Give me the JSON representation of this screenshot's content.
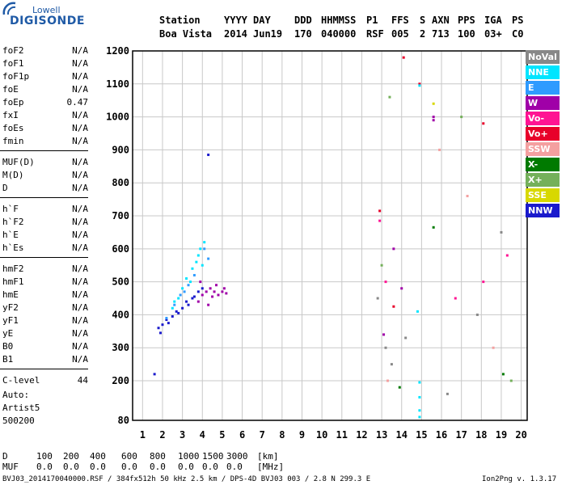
{
  "logo": {
    "line1": "Lowell",
    "line2": "DIGISONDE"
  },
  "header": {
    "labels": [
      "Station",
      "YYYY",
      "DAY",
      "DDD",
      "HHMMSS",
      "P1",
      "FFS",
      "S",
      "AXN",
      "PPS",
      "IGA",
      "PS"
    ],
    "values": [
      "Boa Vista",
      "2014",
      "Jun19",
      "170",
      "040000",
      "RSF",
      "005",
      "2",
      "713",
      "100",
      "03+",
      "C0"
    ]
  },
  "params": {
    "group1": [
      [
        "foF2",
        "N/A"
      ],
      [
        "foF1",
        "N/A"
      ],
      [
        "foF1p",
        "N/A"
      ],
      [
        "foE",
        "N/A"
      ],
      [
        "foEp",
        "0.47"
      ],
      [
        "fxI",
        "N/A"
      ],
      [
        "foEs",
        "N/A"
      ],
      [
        "fmin",
        "N/A"
      ]
    ],
    "group2": [
      [
        "MUF(D)",
        "N/A"
      ],
      [
        "M(D)",
        "N/A"
      ],
      [
        "D",
        "N/A"
      ]
    ],
    "group3": [
      [
        "h`F",
        "N/A"
      ],
      [
        "h`F2",
        "N/A"
      ],
      [
        "h`E",
        "N/A"
      ],
      [
        "h`Es",
        "N/A"
      ]
    ],
    "group4": [
      [
        "hmF2",
        "N/A"
      ],
      [
        "hmF1",
        "N/A"
      ],
      [
        "hmE",
        "N/A"
      ],
      [
        "yF2",
        "N/A"
      ],
      [
        "yF1",
        "N/A"
      ],
      [
        "yE",
        "N/A"
      ],
      [
        "B0",
        "N/A"
      ],
      [
        "B1",
        "N/A"
      ]
    ],
    "group5": [
      [
        "C-level",
        "44"
      ]
    ]
  },
  "auto": {
    "label": "Auto:",
    "artist": "Artist5",
    "version": "500200"
  },
  "muf_table": {
    "d_label": "D",
    "d_values": [
      "100",
      "200",
      "400",
      "600",
      "800",
      "1000",
      "1500",
      "3000"
    ],
    "d_unit": "[km]",
    "muf_label": "MUF",
    "muf_values": [
      "0.0",
      "0.0",
      "0.0",
      "0.0",
      "0.0",
      "0.0",
      "0.0",
      "0.0"
    ],
    "muf_unit": "[MHz]"
  },
  "footer": {
    "left": "BVJ03_2014170040000.RSF / 384fx512h 50 kHz 2.5 km / DPS-4D BVJ03 003 / 2.8 N 299.3 E",
    "right": "Ion2Png v. 1.3.17"
  },
  "legend": [
    {
      "label": "NoVal",
      "color": "#888888"
    },
    {
      "label": "NNE",
      "color": "#00e5ff"
    },
    {
      "label": "E",
      "color": "#2f9bff"
    },
    {
      "label": "W",
      "color": "#a000a8"
    },
    {
      "label": "Vo-",
      "color": "#ff1493"
    },
    {
      "label": "Vo+",
      "color": "#e8002a"
    },
    {
      "label": "SSW",
      "color": "#f4a0a0"
    },
    {
      "label": "X-",
      "color": "#007a00"
    },
    {
      "label": "X+",
      "color": "#74b05a"
    },
    {
      "label": "SSE",
      "color": "#d8d800"
    },
    {
      "label": "NNW",
      "color": "#1a1acc"
    }
  ],
  "chart_data": {
    "type": "scatter",
    "xlim": [
      0.5,
      20.3
    ],
    "ylim": [
      80,
      1200
    ],
    "x_ticks": [
      1,
      2,
      3,
      4,
      5,
      6,
      7,
      8,
      9,
      10,
      11,
      12,
      13,
      14,
      15,
      16,
      17,
      18,
      19,
      20
    ],
    "y_ticks": [
      80,
      200,
      300,
      400,
      500,
      600,
      700,
      800,
      900,
      1000,
      1100,
      1200
    ],
    "grid": true,
    "legend_placement": "right",
    "series": [
      {
        "color": "#1a1acc",
        "points": [
          [
            1.8,
            360
          ],
          [
            2.0,
            370
          ],
          [
            2.2,
            385
          ],
          [
            2.5,
            395
          ],
          [
            2.7,
            410
          ],
          [
            3.0,
            420
          ],
          [
            3.2,
            440
          ],
          [
            3.5,
            450
          ],
          [
            3.8,
            470
          ],
          [
            4.0,
            480
          ],
          [
            1.9,
            345
          ],
          [
            2.3,
            375
          ],
          [
            2.8,
            405
          ],
          [
            3.3,
            430
          ],
          [
            3.6,
            455
          ]
        ]
      },
      {
        "color": "#a000a8",
        "points": [
          [
            3.8,
            440
          ],
          [
            4.0,
            460
          ],
          [
            4.2,
            470
          ],
          [
            4.4,
            480
          ],
          [
            4.6,
            470
          ],
          [
            4.8,
            460
          ],
          [
            5.0,
            470
          ],
          [
            5.2,
            465
          ],
          [
            4.3,
            430
          ],
          [
            4.7,
            490
          ],
          [
            3.9,
            500
          ],
          [
            4.5,
            455
          ],
          [
            5.1,
            480
          ]
        ]
      },
      {
        "color": "#00e5ff",
        "points": [
          [
            2.5,
            420
          ],
          [
            2.8,
            450
          ],
          [
            3.0,
            480
          ],
          [
            3.2,
            510
          ],
          [
            3.5,
            540
          ],
          [
            3.7,
            560
          ],
          [
            3.9,
            600
          ],
          [
            4.1,
            620
          ],
          [
            3.4,
            500
          ],
          [
            2.6,
            440
          ],
          [
            3.8,
            580
          ],
          [
            4.0,
            550
          ]
        ]
      },
      {
        "color": "#2f9bff",
        "points": [
          [
            2.2,
            390
          ],
          [
            2.6,
            430
          ],
          [
            3.1,
            470
          ],
          [
            3.6,
            520
          ],
          [
            4.1,
            600
          ],
          [
            4.3,
            570
          ],
          [
            2.9,
            460
          ],
          [
            3.3,
            490
          ]
        ]
      },
      {
        "color": "#e8002a",
        "points": [
          [
            12.9,
            715
          ],
          [
            14.9,
            1100
          ],
          [
            13.6,
            425
          ],
          [
            14.1,
            1180
          ],
          [
            18.1,
            980
          ]
        ]
      },
      {
        "color": "#d8d800",
        "points": [
          [
            15.6,
            1040
          ]
        ]
      },
      {
        "color": "#007a00",
        "points": [
          [
            15.6,
            665
          ],
          [
            13.9,
            180
          ],
          [
            19.1,
            220
          ]
        ]
      },
      {
        "color": "#00e5ff",
        "points": [
          [
            14.9,
            195
          ],
          [
            14.9,
            150
          ],
          [
            14.9,
            110
          ],
          [
            14.9,
            90
          ],
          [
            14.8,
            410
          ],
          [
            14.9,
            1095
          ]
        ]
      },
      {
        "color": "#1a1acc",
        "points": [
          [
            4.3,
            885
          ],
          [
            1.6,
            220
          ]
        ]
      },
      {
        "color": "#a000a8",
        "points": [
          [
            15.6,
            1000
          ],
          [
            15.6,
            990
          ],
          [
            13.1,
            340
          ],
          [
            14.0,
            480
          ],
          [
            13.6,
            600
          ]
        ]
      },
      {
        "color": "#ff1493",
        "points": [
          [
            12.9,
            685
          ],
          [
            13.2,
            500
          ],
          [
            16.7,
            450
          ],
          [
            18.1,
            500
          ],
          [
            19.3,
            580
          ]
        ]
      },
      {
        "color": "#f4a0a0",
        "points": [
          [
            13.3,
            200
          ],
          [
            15.9,
            900
          ],
          [
            17.3,
            760
          ],
          [
            18.6,
            300
          ]
        ]
      },
      {
        "color": "#74b05a",
        "points": [
          [
            13.0,
            550
          ],
          [
            13.4,
            1060
          ],
          [
            19.5,
            200
          ],
          [
            17.0,
            1000
          ]
        ]
      },
      {
        "color": "#888888",
        "points": [
          [
            13.2,
            300
          ],
          [
            13.5,
            250
          ],
          [
            12.8,
            450
          ],
          [
            14.2,
            330
          ],
          [
            16.3,
            160
          ],
          [
            17.8,
            400
          ],
          [
            19.0,
            650
          ]
        ]
      }
    ]
  }
}
